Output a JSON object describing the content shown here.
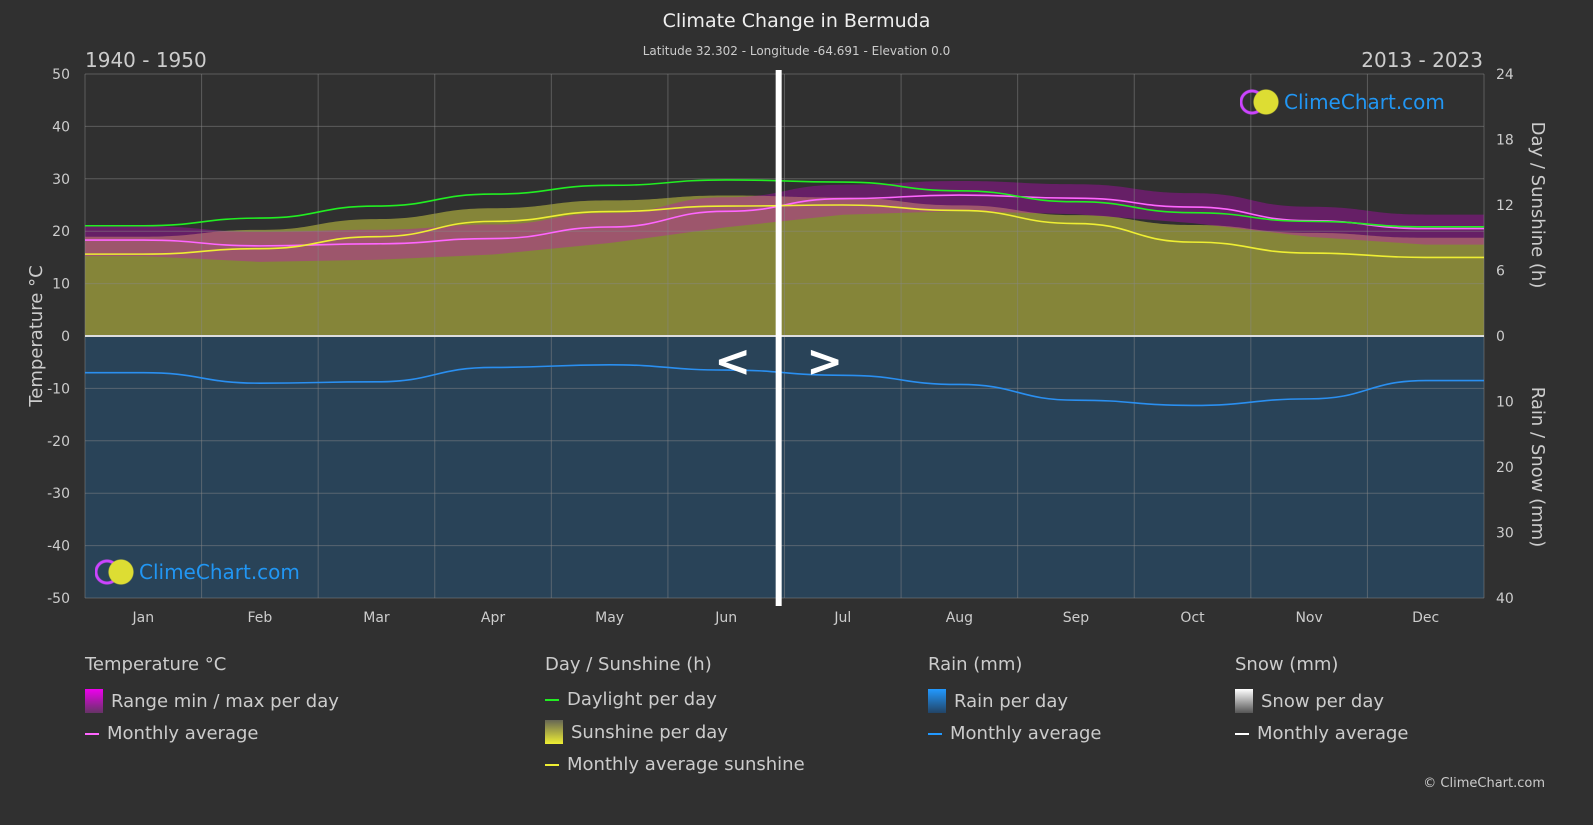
{
  "title": "Climate Change in Bermuda",
  "subtitle": "Latitude 32.302 - Longitude -64.691 - Elevation 0.0",
  "period_left": "1940 - 1950",
  "period_right": "2013 - 2023",
  "logo_text": "ClimeChart.com",
  "copyright": "© ClimeChart.com",
  "nav": {
    "prev": "<",
    "next": ">"
  },
  "colors": {
    "background": "#303030",
    "temperature": "#ff66ff",
    "temperature_range": "#cc00cc",
    "daylight": "#22ee22",
    "sunshine": "#eeee33",
    "sunshine_fill": "#8a8a3a",
    "rain": "#2a8ff0",
    "rain_fill": "#274a66",
    "snow": "#ffffff"
  },
  "legend": {
    "temperature": {
      "heading": "Temperature °C",
      "items": [
        "Range min / max per day",
        "Monthly average"
      ]
    },
    "sun": {
      "heading": "Day / Sunshine (h)",
      "items": [
        "Daylight per day",
        "Sunshine per day",
        "Monthly average sunshine"
      ]
    },
    "rain": {
      "heading": "Rain (mm)",
      "items": [
        "Rain per day",
        "Monthly average"
      ]
    },
    "snow": {
      "heading": "Snow (mm)",
      "items": [
        "Snow per day",
        "Monthly average"
      ]
    }
  },
  "chart_data": {
    "type": "line",
    "title": "Climate Change in Bermuda",
    "categories": [
      "Jan",
      "Feb",
      "Mar",
      "Apr",
      "May",
      "Jun",
      "Jul",
      "Aug",
      "Sep",
      "Oct",
      "Nov",
      "Dec"
    ],
    "ylabel_left": "Temperature °C",
    "ylabel_right_top": "Day / Sunshine (h)",
    "ylabel_right_bottom": "Rain / Snow (mm)",
    "ylim_left": [
      -50,
      50
    ],
    "yticks_left": [
      "50",
      "40",
      "30",
      "20",
      "10",
      "0",
      "-10",
      "-20",
      "-30",
      "-40",
      "-50"
    ],
    "yticks_right_top": [
      "24",
      "18",
      "12",
      "6",
      "0"
    ],
    "yticks_right_bottom": [
      "10",
      "20",
      "30",
      "40"
    ],
    "grid": true,
    "legend_placement": "bottom",
    "series": [
      {
        "name": "Monthly average",
        "unit": "°C",
        "values": [
          18.3,
          17.2,
          17.6,
          18.6,
          20.8,
          23.8,
          26.2,
          26.9,
          26.3,
          24.6,
          22.0,
          20.5
        ]
      },
      {
        "name": "Daylight per day",
        "unit": "h",
        "values": [
          10.1,
          10.8,
          11.9,
          13.0,
          13.8,
          14.3,
          14.1,
          13.3,
          12.3,
          11.3,
          10.5,
          10.0
        ]
      },
      {
        "name": "Monthly average sunshine",
        "unit": "h",
        "values": [
          7.5,
          8.0,
          9.1,
          10.5,
          11.4,
          11.9,
          12.0,
          11.5,
          10.3,
          8.6,
          7.6,
          7.2
        ]
      },
      {
        "name": "Monthly average",
        "unit": "mm",
        "values": [
          5.6,
          7.2,
          7.0,
          4.8,
          4.4,
          5.2,
          6.0,
          7.4,
          9.8,
          10.6,
          9.6,
          6.8
        ]
      }
    ]
  }
}
